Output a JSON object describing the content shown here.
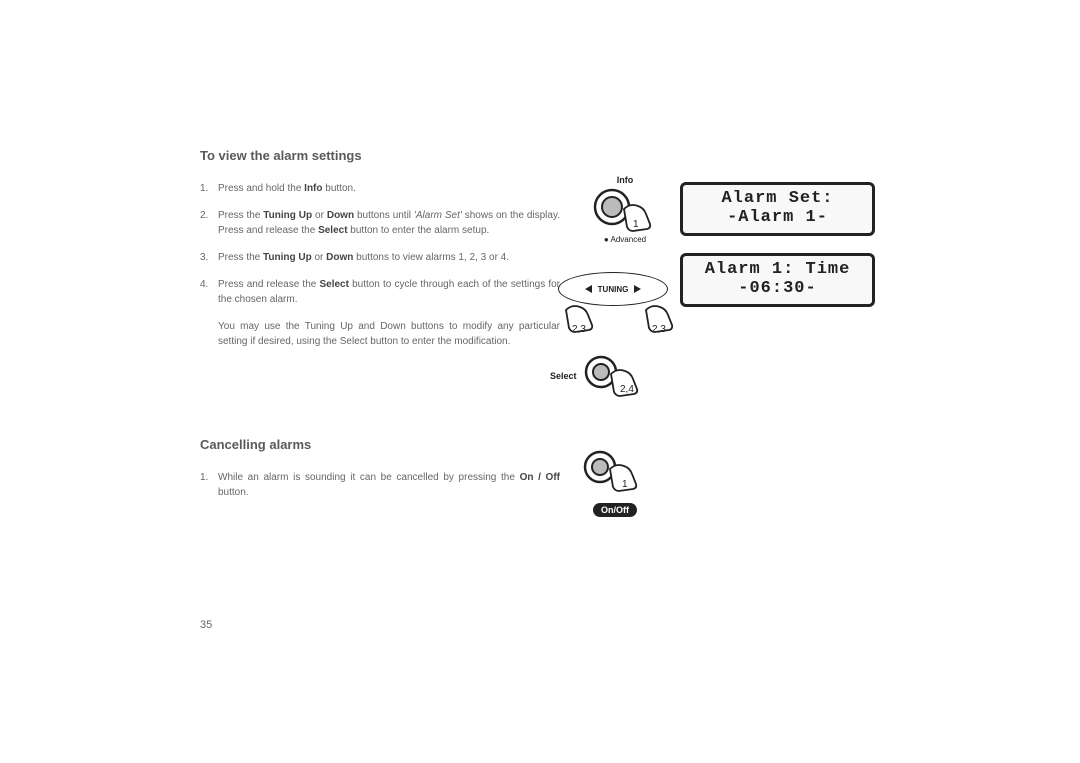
{
  "section1": {
    "title": "To view the alarm settings",
    "steps": [
      {
        "n": "1.",
        "html": "Press and hold the <b>Info</b> button."
      },
      {
        "n": "2.",
        "html": "Press the <b>Tuning Up</b> or <b>Down</b> buttons until <i>'Alarm Set'</i> shows on the display. Press and release the <b>Select</b> button to enter the alarm setup."
      },
      {
        "n": "3.",
        "html": "Press the <b>Tuning Up</b> or <b>Down</b> buttons to view alarms 1, 2, 3 or 4."
      },
      {
        "n": "4.",
        "html": "Press and release the <b>Select</b> button to cycle through each of the settings for the chosen alarm."
      }
    ],
    "note": "You may use the Tuning Up and Down buttons to modify any particular setting if desired, using the Select button to enter the modification."
  },
  "section2": {
    "title": "Cancelling alarms",
    "steps": [
      {
        "n": "1.",
        "html": "While an alarm is sounding it can be cancelled by pressing the <b>On / Off</b> button."
      }
    ]
  },
  "pageNumber": "35",
  "diagram": {
    "info_label": "Info",
    "advanced_label": "Advanced",
    "tuning_label": "TUNING",
    "select_label": "Select",
    "onoff_label": "On/Off",
    "press_info": "1",
    "press_tuning_left": "2,3",
    "press_tuning_right": "2,3",
    "press_select": "2,4",
    "press_onoff": "1"
  },
  "lcd1": {
    "line1": "Alarm Set:",
    "line2": "-Alarm 1-"
  },
  "lcd2": {
    "line1": "Alarm 1: Time",
    "line2": "-06:30-"
  }
}
